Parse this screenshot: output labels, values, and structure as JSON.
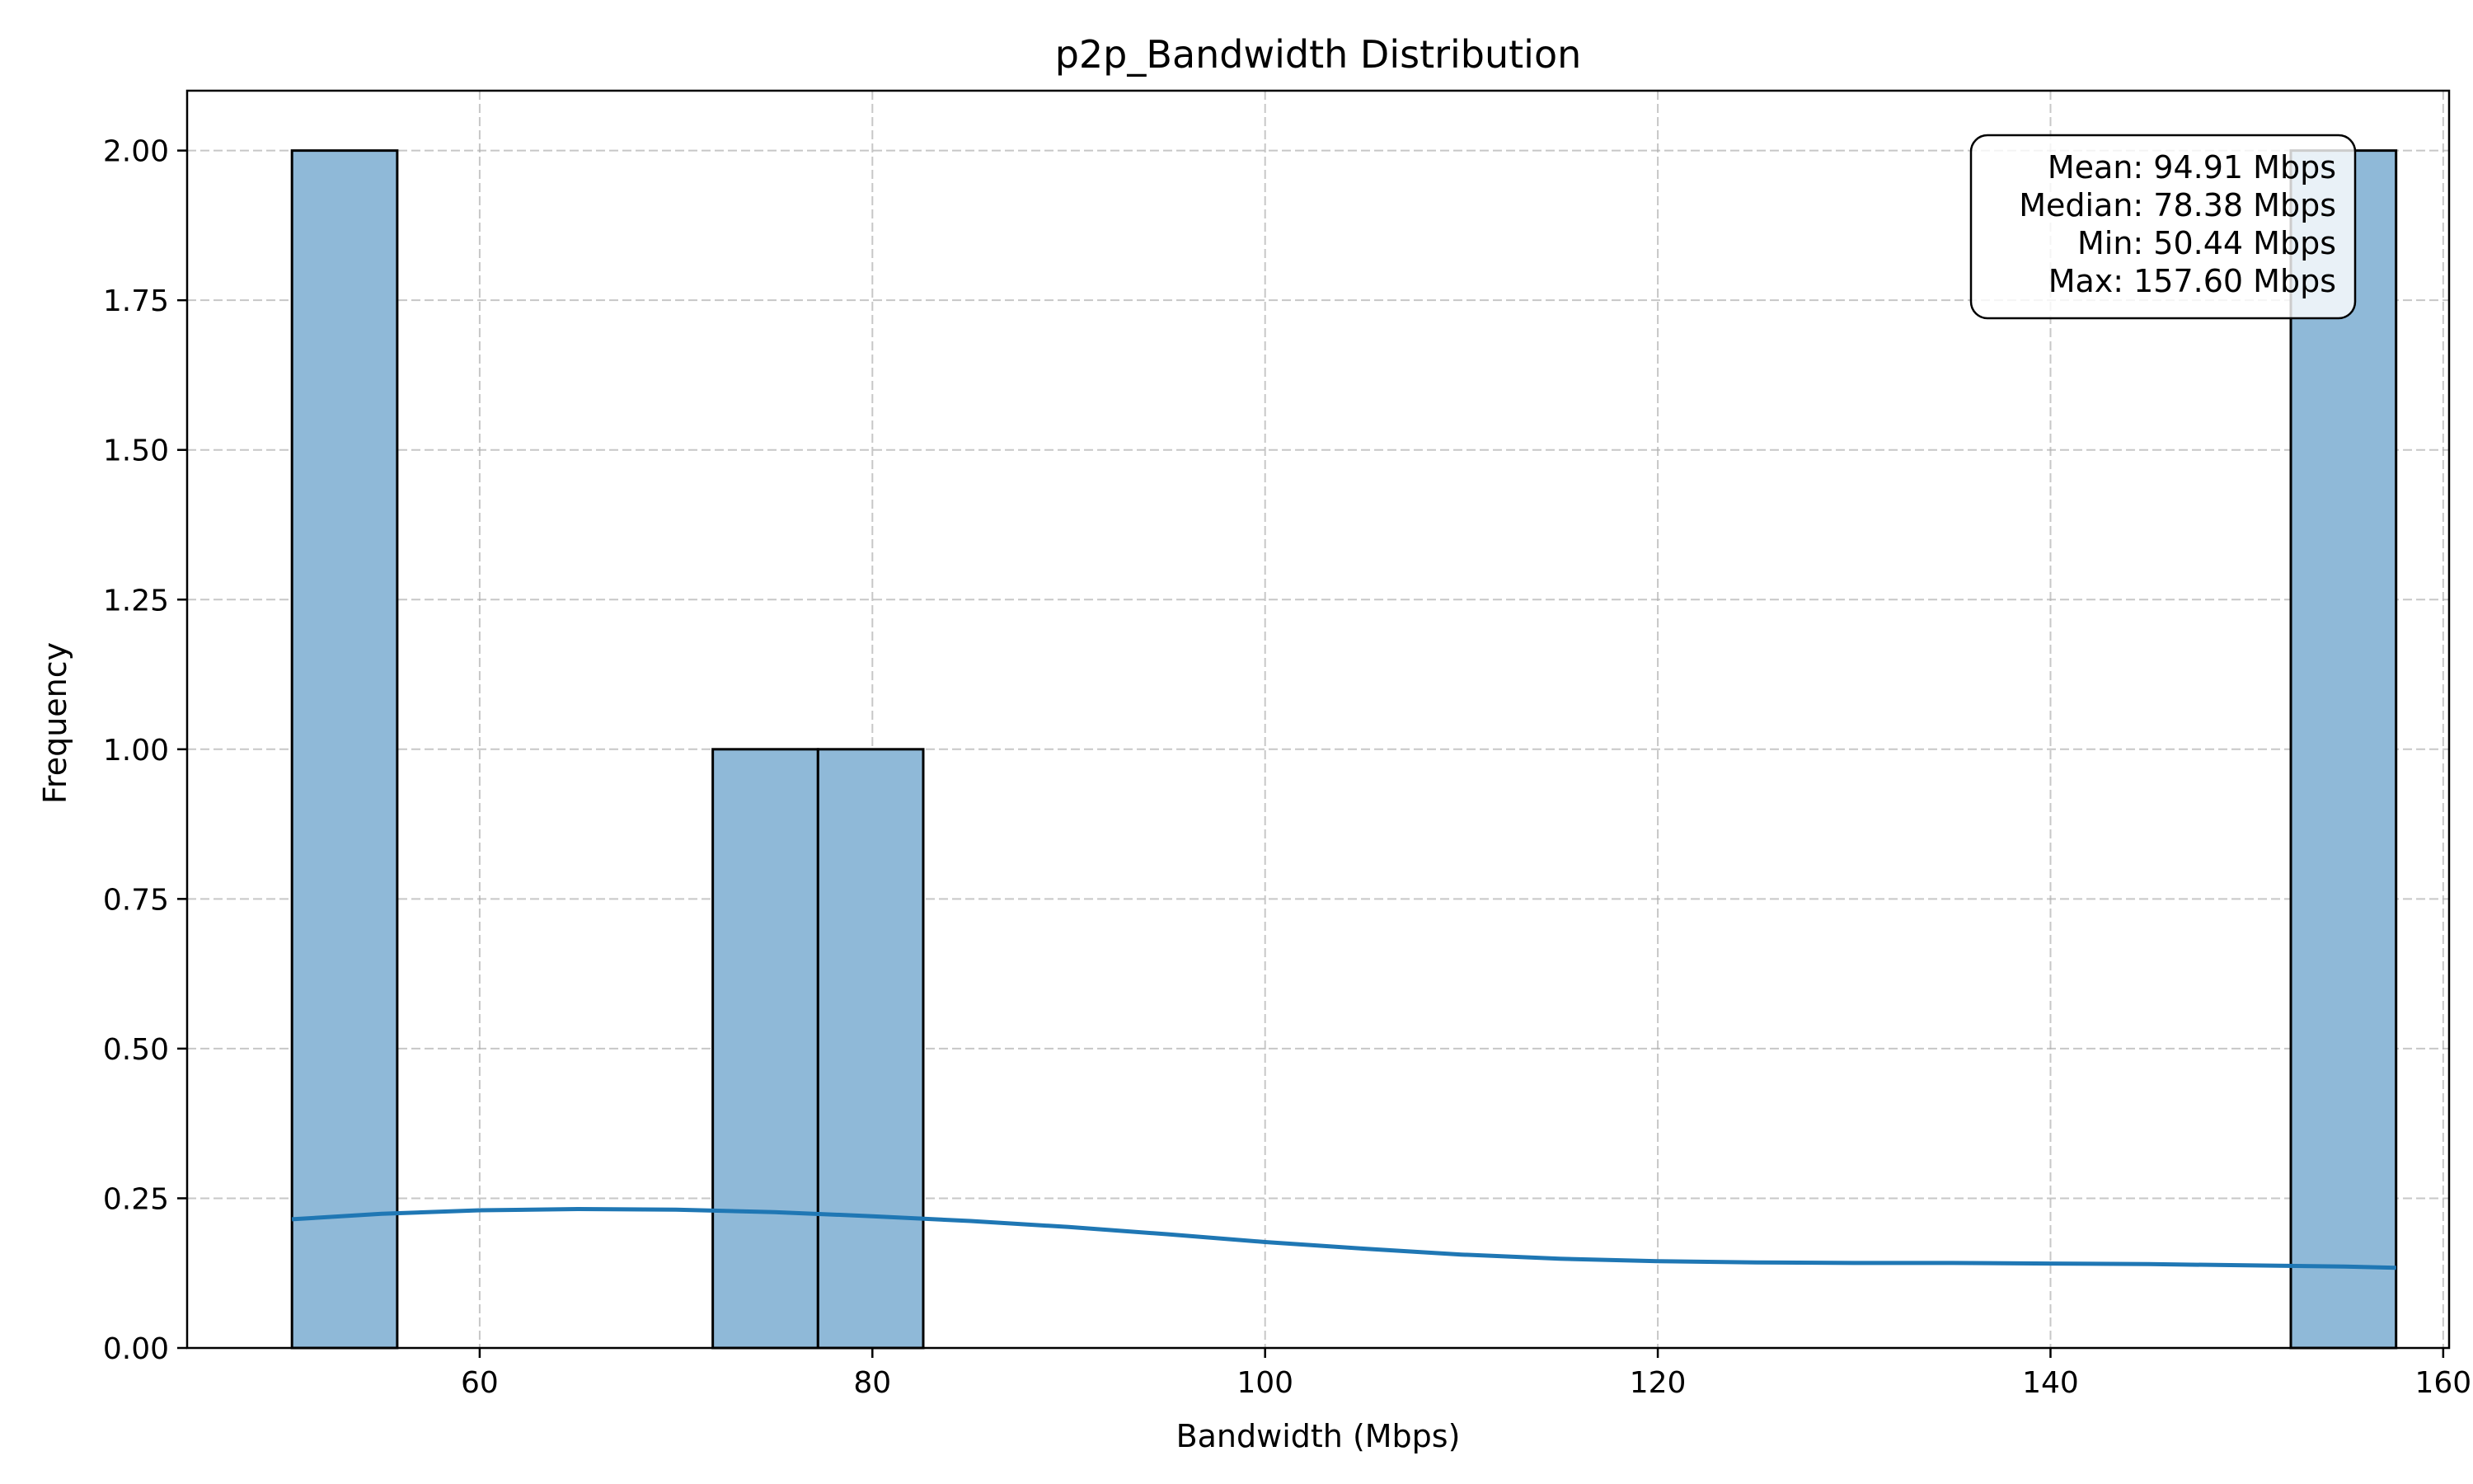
{
  "chart_data": {
    "type": "histogram",
    "title": "p2p_Bandwidth Distribution",
    "xlabel": "Bandwidth (Mbps)",
    "ylabel": "Frequency",
    "xlim": [
      45.1,
      160.3
    ],
    "ylim": [
      0,
      2.1
    ],
    "xticks": [
      60,
      80,
      100,
      120,
      140,
      160
    ],
    "yticks": [
      0.0,
      0.25,
      0.5,
      0.75,
      1.0,
      1.25,
      1.5,
      1.75,
      2.0
    ],
    "ytick_labels": [
      "0.00",
      "0.25",
      "0.50",
      "0.75",
      "1.00",
      "1.25",
      "1.50",
      "1.75",
      "2.00"
    ],
    "grid": true,
    "bins": [
      {
        "x0": 50.44,
        "x1": 55.8,
        "count": 2
      },
      {
        "x0": 71.87,
        "x1": 77.23,
        "count": 1
      },
      {
        "x0": 77.23,
        "x1": 82.59,
        "count": 1
      },
      {
        "x0": 152.24,
        "x1": 157.6,
        "count": 2
      }
    ],
    "kde": {
      "x": [
        50.44,
        55,
        60,
        65,
        70,
        75,
        80,
        85,
        90,
        95,
        100,
        105,
        110,
        115,
        120,
        125,
        130,
        135,
        140,
        145,
        150,
        155,
        157.6
      ],
      "y": [
        0.215,
        0.224,
        0.23,
        0.232,
        0.231,
        0.227,
        0.22,
        0.212,
        0.202,
        0.19,
        0.177,
        0.166,
        0.156,
        0.149,
        0.145,
        0.143,
        0.142,
        0.142,
        0.141,
        0.14,
        0.138,
        0.136,
        0.134
      ]
    },
    "bar_color": "#8fb9d8",
    "line_color": "#1f77b4",
    "stats": {
      "mean": "Mean: 94.91 Mbps",
      "median": "Median: 78.38 Mbps",
      "min": "Min: 50.44 Mbps",
      "max": "Max: 157.60 Mbps"
    }
  }
}
